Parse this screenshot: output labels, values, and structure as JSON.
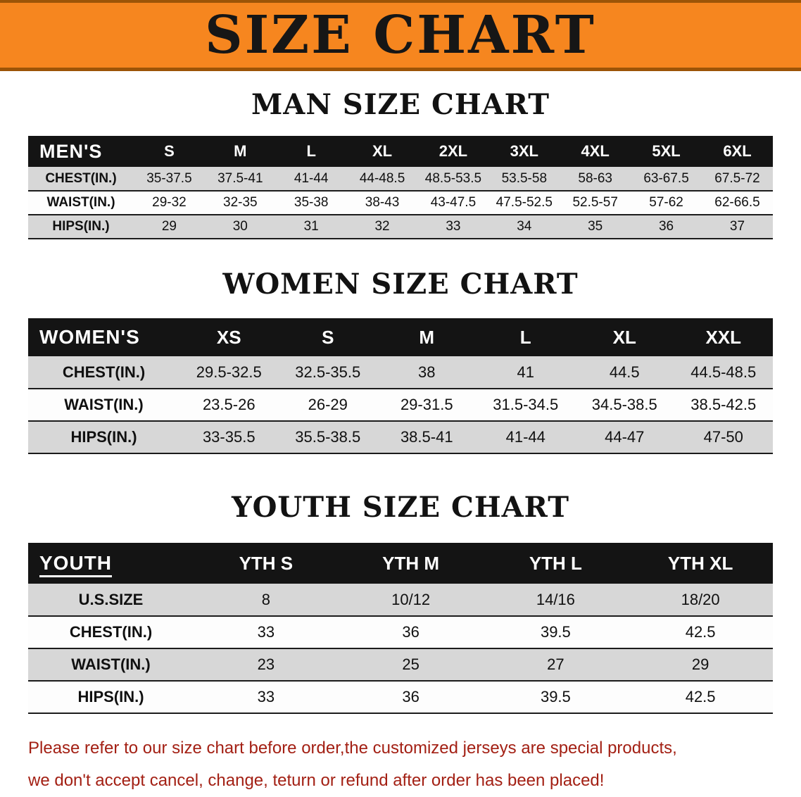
{
  "banner": {
    "title": "SIZE CHART"
  },
  "sections": [
    {
      "heading": "MAN SIZE CHART",
      "table": {
        "header": [
          "MEN'S",
          "S",
          "M",
          "L",
          "XL",
          "2XL",
          "3XL",
          "4XL",
          "5XL",
          "6XL"
        ],
        "rows": [
          [
            "CHEST(IN.)",
            "35-37.5",
            "37.5-41",
            "41-44",
            "44-48.5",
            "48.5-53.5",
            "53.5-58",
            "58-63",
            "63-67.5",
            "67.5-72"
          ],
          [
            "WAIST(IN.)",
            "29-32",
            "32-35",
            "35-38",
            "38-43",
            "43-47.5",
            "47.5-52.5",
            "52.5-57",
            "57-62",
            "62-66.5"
          ],
          [
            "HIPS(IN.)",
            "29",
            "30",
            "31",
            "32",
            "33",
            "34",
            "35",
            "36",
            "37"
          ]
        ]
      }
    },
    {
      "heading": "WOMEN SIZE CHART",
      "table": {
        "header": [
          "WOMEN'S",
          "XS",
          "S",
          "M",
          "L",
          "XL",
          "XXL"
        ],
        "rows": [
          [
            "CHEST(IN.)",
            "29.5-32.5",
            "32.5-35.5",
            "38",
            "41",
            "44.5",
            "44.5-48.5"
          ],
          [
            "WAIST(IN.)",
            "23.5-26",
            "26-29",
            "29-31.5",
            "31.5-34.5",
            "34.5-38.5",
            "38.5-42.5"
          ],
          [
            "HIPS(IN.)",
            "33-35.5",
            "35.5-38.5",
            "38.5-41",
            "41-44",
            "44-47",
            "47-50"
          ]
        ]
      }
    },
    {
      "heading": "YOUTH SIZE CHART",
      "table": {
        "header": [
          "YOUTH",
          "YTH S",
          "YTH M",
          "YTH L",
          "YTH XL"
        ],
        "rows": [
          [
            "U.S.SIZE",
            "8",
            "10/12",
            "14/16",
            "18/20"
          ],
          [
            "CHEST(IN.)",
            "33",
            "36",
            "39.5",
            "42.5"
          ],
          [
            "WAIST(IN.)",
            "23",
            "25",
            "27",
            "29"
          ],
          [
            "HIPS(IN.)",
            "33",
            "36",
            "39.5",
            "42.5"
          ]
        ]
      }
    }
  ],
  "disclaimer": {
    "lines": [
      "Please refer to our size chart before order,the customized jerseys are special products,",
      "we don't accept cancel, change, teturn or refund after order has been placed!"
    ]
  },
  "colors": {
    "banner_bg": "#F6861F",
    "banner_edge": "#9C5407",
    "header_bg": "#141414",
    "row_alt": "#D7D7D7",
    "row_base": "#FDFDFD",
    "grid_line": "#1B1B1B",
    "text": "#101010",
    "disclaimer": "#A32014"
  }
}
